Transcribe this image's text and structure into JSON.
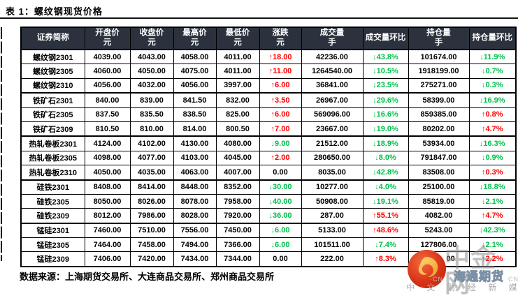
{
  "page": {
    "title": "表 1：螺纹钢现货价格",
    "source_note": "数据来源：上海期货交易所、大连商品交易所、郑州商品交易所"
  },
  "colors": {
    "up": "#ff0000",
    "down": "#00c04a",
    "header_bg": "#2b323d",
    "header_text": "#ffffff"
  },
  "chart_data": {
    "type": "table",
    "title": "表 1：螺纹钢现货价格",
    "headers": [
      {
        "label": "证券简称",
        "unit": ""
      },
      {
        "label": "开盘价",
        "unit": "元"
      },
      {
        "label": "收盘价",
        "unit": "元"
      },
      {
        "label": "最高价",
        "unit": "元"
      },
      {
        "label": "最低价",
        "unit": "元"
      },
      {
        "label": "涨跌",
        "unit": "元"
      },
      {
        "label": "成交量",
        "unit": "手"
      },
      {
        "label": "成交量环比",
        "unit": ""
      },
      {
        "label": "持仓量",
        "unit": "手"
      },
      {
        "label": "持仓量环比",
        "unit": ""
      }
    ],
    "rows": [
      {
        "name": "螺纹钢2301",
        "open": "4039.00",
        "close": "4043.00",
        "high": "4058.00",
        "low": "4011.00",
        "chg": {
          "d": "up",
          "v": "18.00"
        },
        "vol": "42236.00",
        "vol_pct": {
          "d": "down",
          "v": "43.8%"
        },
        "oi": "101674.00",
        "oi_pct": {
          "d": "down",
          "v": "11.9%"
        }
      },
      {
        "name": "螺纹钢2305",
        "open": "4060.00",
        "close": "4050.00",
        "high": "4075.00",
        "low": "4011.00",
        "chg": {
          "d": "up",
          "v": "11.00"
        },
        "vol": "1264540.00",
        "vol_pct": {
          "d": "down",
          "v": "10.5%"
        },
        "oi": "1918199.00",
        "oi_pct": {
          "d": "down",
          "v": "0.7%"
        }
      },
      {
        "name": "螺纹钢2310",
        "open": "4056.00",
        "close": "4032.00",
        "high": "4056.00",
        "low": "3997.00",
        "chg": {
          "d": "up",
          "v": "6.00"
        },
        "vol": "36841.00",
        "vol_pct": {
          "d": "down",
          "v": "23.5%"
        },
        "oi": "275271.00",
        "oi_pct": {
          "d": "down",
          "v": "0.3%"
        }
      },
      {
        "name": "铁矿石2301",
        "open": "840.00",
        "close": "839.00",
        "high": "841.50",
        "low": "832.00",
        "chg": {
          "d": "up",
          "v": "3.50"
        },
        "vol": "26967.00",
        "vol_pct": {
          "d": "down",
          "v": "29.6%"
        },
        "oi": "58399.00",
        "oi_pct": {
          "d": "down",
          "v": "16.9%"
        }
      },
      {
        "name": "铁矿石2305",
        "open": "837.50",
        "close": "835.50",
        "high": "838.50",
        "low": "825.00",
        "chg": {
          "d": "up",
          "v": "6.00"
        },
        "vol": "569096.00",
        "vol_pct": {
          "d": "down",
          "v": "16.6%"
        },
        "oi": "859385.00",
        "oi_pct": {
          "d": "up",
          "v": "0.8%"
        }
      },
      {
        "name": "铁矿石2309",
        "open": "810.50",
        "close": "810.00",
        "high": "814.00",
        "low": "800.50",
        "chg": {
          "d": "up",
          "v": "7.00"
        },
        "vol": "23667.00",
        "vol_pct": {
          "d": "down",
          "v": "19.0%"
        },
        "oi": "80202.00",
        "oi_pct": {
          "d": "up",
          "v": "4.7%"
        }
      },
      {
        "name": "热轧卷板2301",
        "open": "4124.00",
        "close": "4102.00",
        "high": "4130.00",
        "low": "4080.00",
        "chg": {
          "d": "down",
          "v": "9.00"
        },
        "vol": "21512.00",
        "vol_pct": {
          "d": "down",
          "v": "18.9%"
        },
        "oi": "53934.00",
        "oi_pct": {
          "d": "down",
          "v": "16.3%"
        }
      },
      {
        "name": "热轧卷板2305",
        "open": "4098.00",
        "close": "4077.00",
        "high": "4103.00",
        "low": "4045.00",
        "chg": {
          "d": "up",
          "v": "2.00"
        },
        "vol": "280650.00",
        "vol_pct": {
          "d": "down",
          "v": "8.0%"
        },
        "oi": "791847.00",
        "oi_pct": {
          "d": "down",
          "v": "0.9%"
        }
      },
      {
        "name": "热轧卷板2310",
        "open": "4050.00",
        "close": "4035.00",
        "high": "4063.00",
        "low": "4007.00",
        "chg": {
          "d": "flat",
          "v": "0.00"
        },
        "vol": "8035.00",
        "vol_pct": {
          "d": "down",
          "v": "42.8%"
        },
        "oi": "83508.00",
        "oi_pct": {
          "d": "up",
          "v": "0.3%"
        }
      },
      {
        "name": "硅铁2301",
        "open": "8408.00",
        "close": "8414.00",
        "high": "8448.00",
        "low": "8352.00",
        "chg": {
          "d": "down",
          "v": "30.00"
        },
        "vol": "10277.00",
        "vol_pct": {
          "d": "down",
          "v": "4.0%"
        },
        "oi": "25100.00",
        "oi_pct": {
          "d": "down",
          "v": "18.8%"
        }
      },
      {
        "name": "硅铁2305",
        "open": "8050.00",
        "close": "8026.00",
        "high": "8078.00",
        "low": "7958.00",
        "chg": {
          "d": "down",
          "v": "40.00"
        },
        "vol": "50908.00",
        "vol_pct": {
          "d": "down",
          "v": "19.1%"
        },
        "oi": "85819.00",
        "oi_pct": {
          "d": "down",
          "v": "2.1%"
        }
      },
      {
        "name": "硅铁2309",
        "open": "8012.00",
        "close": "7986.00",
        "high": "8028.00",
        "low": "7920.00",
        "chg": {
          "d": "down",
          "v": "36.00"
        },
        "vol": "287.00",
        "vol_pct": {
          "d": "up",
          "v": "55.1%"
        },
        "oi": "4082.00",
        "oi_pct": {
          "d": "up",
          "v": "4.7%"
        }
      },
      {
        "name": "锰硅2301",
        "open": "7460.00",
        "close": "7510.00",
        "high": "7556.00",
        "low": "7450.00",
        "chg": {
          "d": "down",
          "v": "6.00"
        },
        "vol": "5133.00",
        "vol_pct": {
          "d": "up",
          "v": "48.6%"
        },
        "oi": "5243.00",
        "oi_pct": {
          "d": "down",
          "v": "42.3%"
        }
      },
      {
        "name": "锰硅2305",
        "open": "7464.00",
        "close": "7458.00",
        "high": "7494.00",
        "low": "7366.00",
        "chg": {
          "d": "down",
          "v": "6.00"
        },
        "vol": "101511.00",
        "vol_pct": {
          "d": "down",
          "v": "7.4%"
        },
        "oi": "127806.00",
        "oi_pct": {
          "d": "down",
          "v": "2.1%"
        }
      },
      {
        "name": "锰硅2309",
        "open": "7406.00",
        "close": "7420.00",
        "high": "7434.00",
        "low": "7344.00",
        "chg": {
          "d": "flat",
          "v": "0.00"
        },
        "vol": "222.00",
        "vol_pct": {
          "d": "up",
          "v": "8.3%"
        },
        "oi": "00",
        "oi_obscured": true,
        "oi_pct": {
          "d": "up",
          "v": "2.2%"
        }
      }
    ]
  },
  "watermark": {
    "brand": "中金网",
    "overlay": "海通期货",
    "tagline": "中 文 财 经 新 媒 体",
    "frag_left": "·CN",
    "frag_right": "CN"
  }
}
